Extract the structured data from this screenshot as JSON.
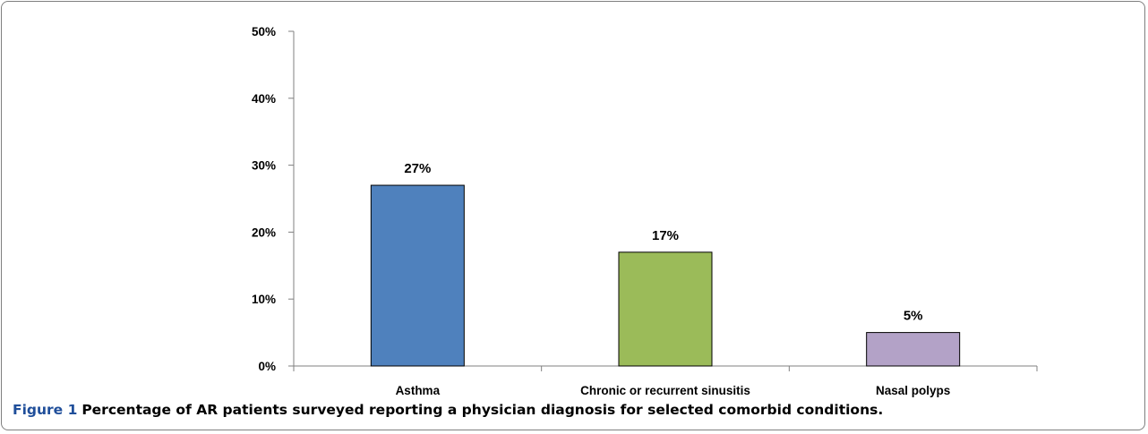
{
  "chart_data": {
    "type": "bar",
    "categories": [
      "Asthma",
      "Chronic or recurrent sinusitis",
      "Nasal polyps"
    ],
    "values": [
      27,
      17,
      5
    ],
    "data_labels": [
      "27%",
      "17%",
      "5%"
    ],
    "ylim": [
      0,
      50
    ],
    "yticks": [
      0,
      10,
      20,
      30,
      40,
      50
    ],
    "ytick_labels": [
      "0%",
      "10%",
      "20%",
      "30%",
      "40%",
      "50%"
    ],
    "colors": [
      "#4f81bd",
      "#9bbb59",
      "#b3a2c7"
    ],
    "grid": false,
    "legend": "none"
  },
  "caption": {
    "label": "Figure 1",
    "text": "Percentage of AR patients surveyed reporting a physician diagnosis for selected comorbid conditions."
  }
}
